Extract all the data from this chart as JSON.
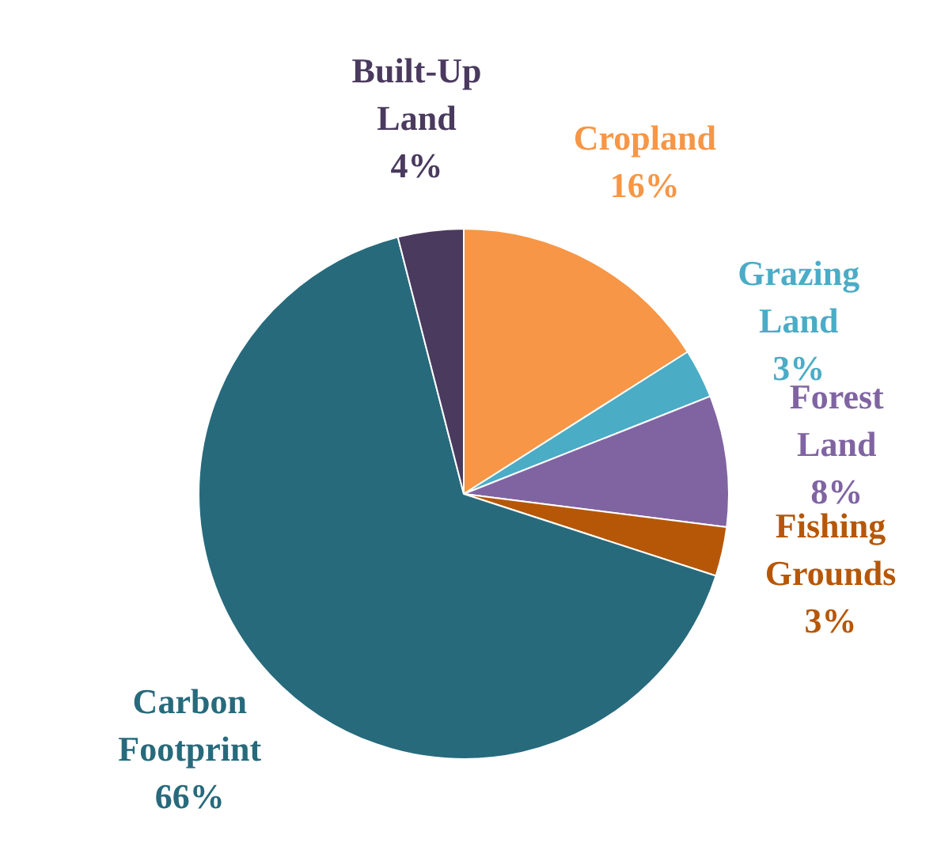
{
  "chart_data": {
    "type": "pie",
    "categories": [
      "Cropland",
      "Grazing Land",
      "Forest Land",
      "Fishing Grounds",
      "Carbon Footprint",
      "Built-Up Land"
    ],
    "values": [
      16,
      3,
      8,
      3,
      66,
      4
    ],
    "value_labels": [
      "16%",
      "3%",
      "8%",
      "3%",
      "66%",
      "4%"
    ],
    "colors": [
      "#f79646",
      "#4bacc6",
      "#8064a2",
      "#b65708",
      "#276a7c",
      "#4a3a5e"
    ],
    "legend": false
  }
}
